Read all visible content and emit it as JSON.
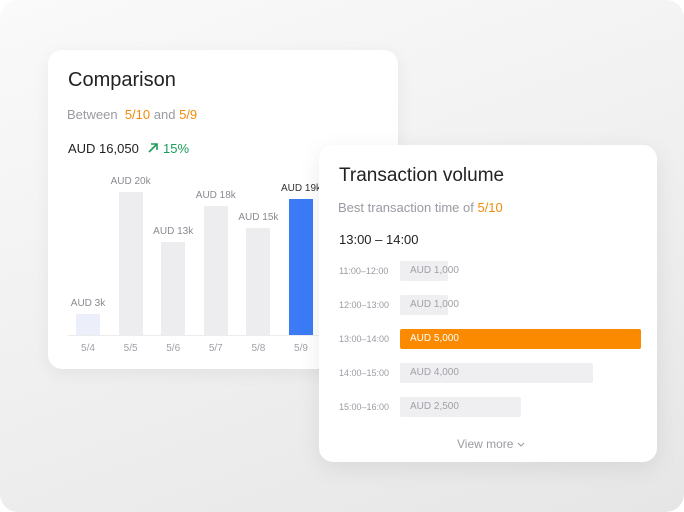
{
  "chart_data": [
    {
      "type": "bar",
      "title": "Comparison",
      "subtitle": {
        "prefix": "Between",
        "from": "5/10",
        "joiner": "and",
        "to": "5/9"
      },
      "total": "AUD 16,050",
      "change": "15%",
      "categories": [
        "5/4",
        "5/5",
        "5/6",
        "5/7",
        "5/8",
        "5/9"
      ],
      "values": [
        3,
        20,
        13,
        18,
        15,
        19
      ],
      "value_labels": [
        "AUD 3k",
        "AUD 20k",
        "AUD 13k",
        "AUD 18k",
        "AUD 15k",
        "AUD 19k"
      ],
      "colors": [
        "#eceefa",
        "#ededef",
        "#ededef",
        "#ededef",
        "#ededef",
        "#3b7cf6"
      ]
    },
    {
      "type": "hbar",
      "title": "Transaction volume",
      "subtitle": "Best transaction time of",
      "subtitle_highlight": "5/10",
      "peak": "13:00 – 14:00",
      "categories": [
        "11:00–12:00",
        "12:00–13:00",
        "13:00–14:00",
        "14:00–15:00",
        "15:00–16:00"
      ],
      "values": [
        1000,
        1000,
        5000,
        4000,
        2500
      ],
      "value_labels": [
        "AUD 1,000",
        "AUD 1,000",
        "AUD 5,000",
        "AUD 4,000",
        "AUD 2,500"
      ],
      "colors": [
        "#efeff1",
        "#efeff1",
        "#fb8a00",
        "#efeff1",
        "#efeff1"
      ],
      "more": "View more"
    }
  ]
}
